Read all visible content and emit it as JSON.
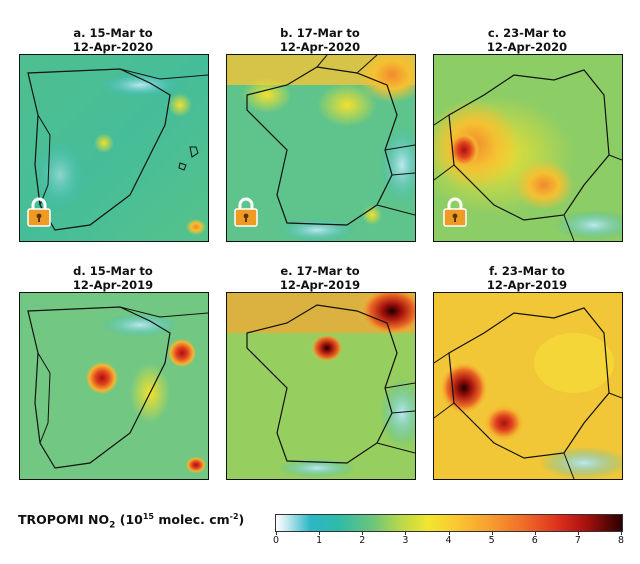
{
  "chart_data": {
    "type": "heatmap",
    "panels": [
      {
        "id": "a",
        "title_line1": "a. 15-Mar to",
        "title_line2": "12-Apr-2020",
        "region": "Iberian Peninsula",
        "lockdown_icon": "padlock-icon"
      },
      {
        "id": "b",
        "title_line1": "b. 17-Mar to",
        "title_line2": "12-Apr-2020",
        "region": "France",
        "lockdown_icon": "padlock-icon"
      },
      {
        "id": "c",
        "title_line1": "c. 23-Mar to",
        "title_line2": "12-Apr-2020",
        "region": "Germany",
        "lockdown_icon": "padlock-icon"
      },
      {
        "id": "d",
        "title_line1": "d. 15-Mar to",
        "title_line2": "12-Apr-2019",
        "region": "Iberian Peninsula",
        "lockdown_icon": ""
      },
      {
        "id": "e",
        "title_line1": "e. 17-Mar to",
        "title_line2": "12-Apr-2019",
        "region": "France",
        "lockdown_icon": ""
      },
      {
        "id": "f",
        "title_line1": "f. 23-Mar to",
        "title_line2": "12-Apr-2019",
        "region": "Germany",
        "lockdown_icon": ""
      }
    ],
    "colorbar": {
      "label_main": "TROPOMI NO",
      "label_sub": "2",
      "label_units_open": " (10",
      "label_exp": "15",
      "label_units_mid": " molec. cm",
      "label_units_exp": "-2",
      "label_units_close": ")",
      "range": [
        0,
        8
      ],
      "ticks": [
        "0",
        "1",
        "2",
        "3",
        "4",
        "5",
        "6",
        "7",
        "8"
      ],
      "colormap": [
        "#ffffff",
        "#2bb7c6",
        "#6cc57a",
        "#f1e62e",
        "#f79d2f",
        "#dc2e1c",
        "#2a0000"
      ]
    }
  }
}
